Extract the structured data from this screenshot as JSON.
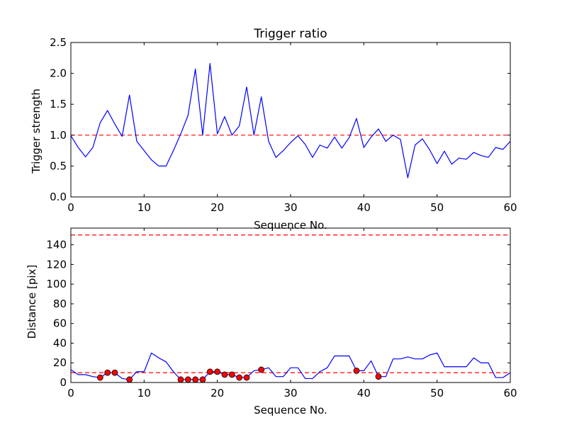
{
  "chart_data": [
    {
      "type": "line",
      "title": "Trigger ratio",
      "xlabel": "Sequence No.",
      "ylabel": "Trigger strength",
      "xlim": [
        0,
        60
      ],
      "ylim": [
        0,
        2.5
      ],
      "xticks": [
        0,
        10,
        20,
        30,
        40,
        50,
        60
      ],
      "xtick_labels": [
        "0",
        "10",
        "20",
        "30",
        "40",
        "50",
        "60"
      ],
      "yticks": [
        0,
        0.5,
        1.0,
        1.5,
        2.0,
        2.5
      ],
      "ytick_labels": [
        "0.0",
        "0.5",
        "1.0",
        "1.5",
        "2.0",
        "2.5"
      ],
      "series": [
        {
          "name": "trigger strength",
          "color": "#0000ff",
          "x": [
            0,
            1,
            2,
            3,
            4,
            5,
            6,
            7,
            8,
            9,
            10,
            11,
            12,
            13,
            14,
            15,
            16,
            17,
            18,
            19,
            20,
            21,
            22,
            23,
            24,
            25,
            26,
            27,
            28,
            29,
            30,
            31,
            32,
            33,
            34,
            35,
            36,
            37,
            38,
            39,
            40,
            41,
            42,
            43,
            44,
            45,
            46,
            47,
            48,
            49,
            50,
            51,
            52,
            53,
            54,
            55,
            56,
            57,
            58,
            59,
            60
          ],
          "y": [
            0.99,
            0.8,
            0.65,
            0.8,
            1.2,
            1.4,
            1.18,
            0.98,
            1.65,
            0.9,
            0.75,
            0.6,
            0.5,
            0.5,
            0.75,
            1.02,
            1.32,
            2.07,
            1.0,
            2.16,
            1.02,
            1.3,
            1.0,
            1.15,
            1.78,
            1.0,
            1.62,
            0.9,
            0.64,
            0.75,
            0.88,
            0.99,
            0.85,
            0.64,
            0.84,
            0.79,
            0.97,
            0.79,
            0.96,
            1.27,
            0.8,
            0.97,
            1.1,
            0.9,
            1.0,
            0.93,
            0.31,
            0.84,
            0.94,
            0.76,
            0.54,
            0.74,
            0.53,
            0.63,
            0.61,
            0.72,
            0.67,
            0.64,
            0.8,
            0.77,
            0.9
          ]
        }
      ],
      "reference_lines": [
        {
          "y": 1.0,
          "color": "#ff0000",
          "style": "dashed"
        }
      ]
    },
    {
      "type": "line",
      "title": "",
      "xlabel": "Sequence No.",
      "ylabel": "Distance [pix]",
      "xlim": [
        0,
        60
      ],
      "ylim": [
        0,
        157
      ],
      "xticks": [
        0,
        10,
        20,
        30,
        40,
        50,
        60
      ],
      "xtick_labels": [
        "0",
        "10",
        "20",
        "30",
        "40",
        "50",
        "60"
      ],
      "yticks": [
        0,
        20,
        40,
        60,
        80,
        100,
        120,
        140
      ],
      "ytick_labels": [
        "0",
        "20",
        "40",
        "60",
        "80",
        "100",
        "120",
        "140"
      ],
      "series": [
        {
          "name": "distance",
          "color": "#0000ff",
          "x": [
            0,
            1,
            2,
            3,
            4,
            5,
            6,
            7,
            8,
            9,
            10,
            11,
            12,
            13,
            14,
            15,
            16,
            17,
            18,
            19,
            20,
            21,
            22,
            23,
            24,
            25,
            26,
            27,
            28,
            29,
            30,
            31,
            32,
            33,
            34,
            35,
            36,
            37,
            38,
            39,
            40,
            41,
            42,
            43,
            44,
            45,
            46,
            47,
            48,
            49,
            50,
            51,
            52,
            53,
            54,
            55,
            56,
            57,
            58,
            59,
            60
          ],
          "y": [
            13,
            8,
            8,
            6,
            5,
            10,
            10,
            4,
            3,
            11,
            11,
            30,
            25,
            21,
            11,
            3,
            3,
            3,
            3,
            11,
            11,
            8,
            8,
            5,
            5,
            12,
            13,
            15,
            6,
            6,
            15,
            15,
            4,
            4,
            11,
            15,
            27,
            27,
            27,
            12,
            12,
            22,
            6,
            6,
            24,
            24,
            26,
            24,
            24,
            28,
            30,
            16,
            16,
            16,
            16,
            25,
            20,
            20,
            5,
            5,
            10
          ]
        },
        {
          "name": "triggered points",
          "color": "#ff0000",
          "marker": "circle",
          "x": [
            4,
            5,
            6,
            8,
            15,
            16,
            17,
            18,
            19,
            20,
            21,
            22,
            23,
            24,
            26,
            39,
            42
          ],
          "y": [
            5,
            10,
            10,
            3,
            3,
            3,
            3,
            3,
            11,
            11,
            8,
            8,
            5,
            5,
            13,
            12,
            6
          ]
        }
      ],
      "reference_lines": [
        {
          "y": 10,
          "color": "#ff0000",
          "style": "dashed"
        },
        {
          "y": 150,
          "color": "#ff0000",
          "style": "dashed"
        }
      ]
    }
  ]
}
